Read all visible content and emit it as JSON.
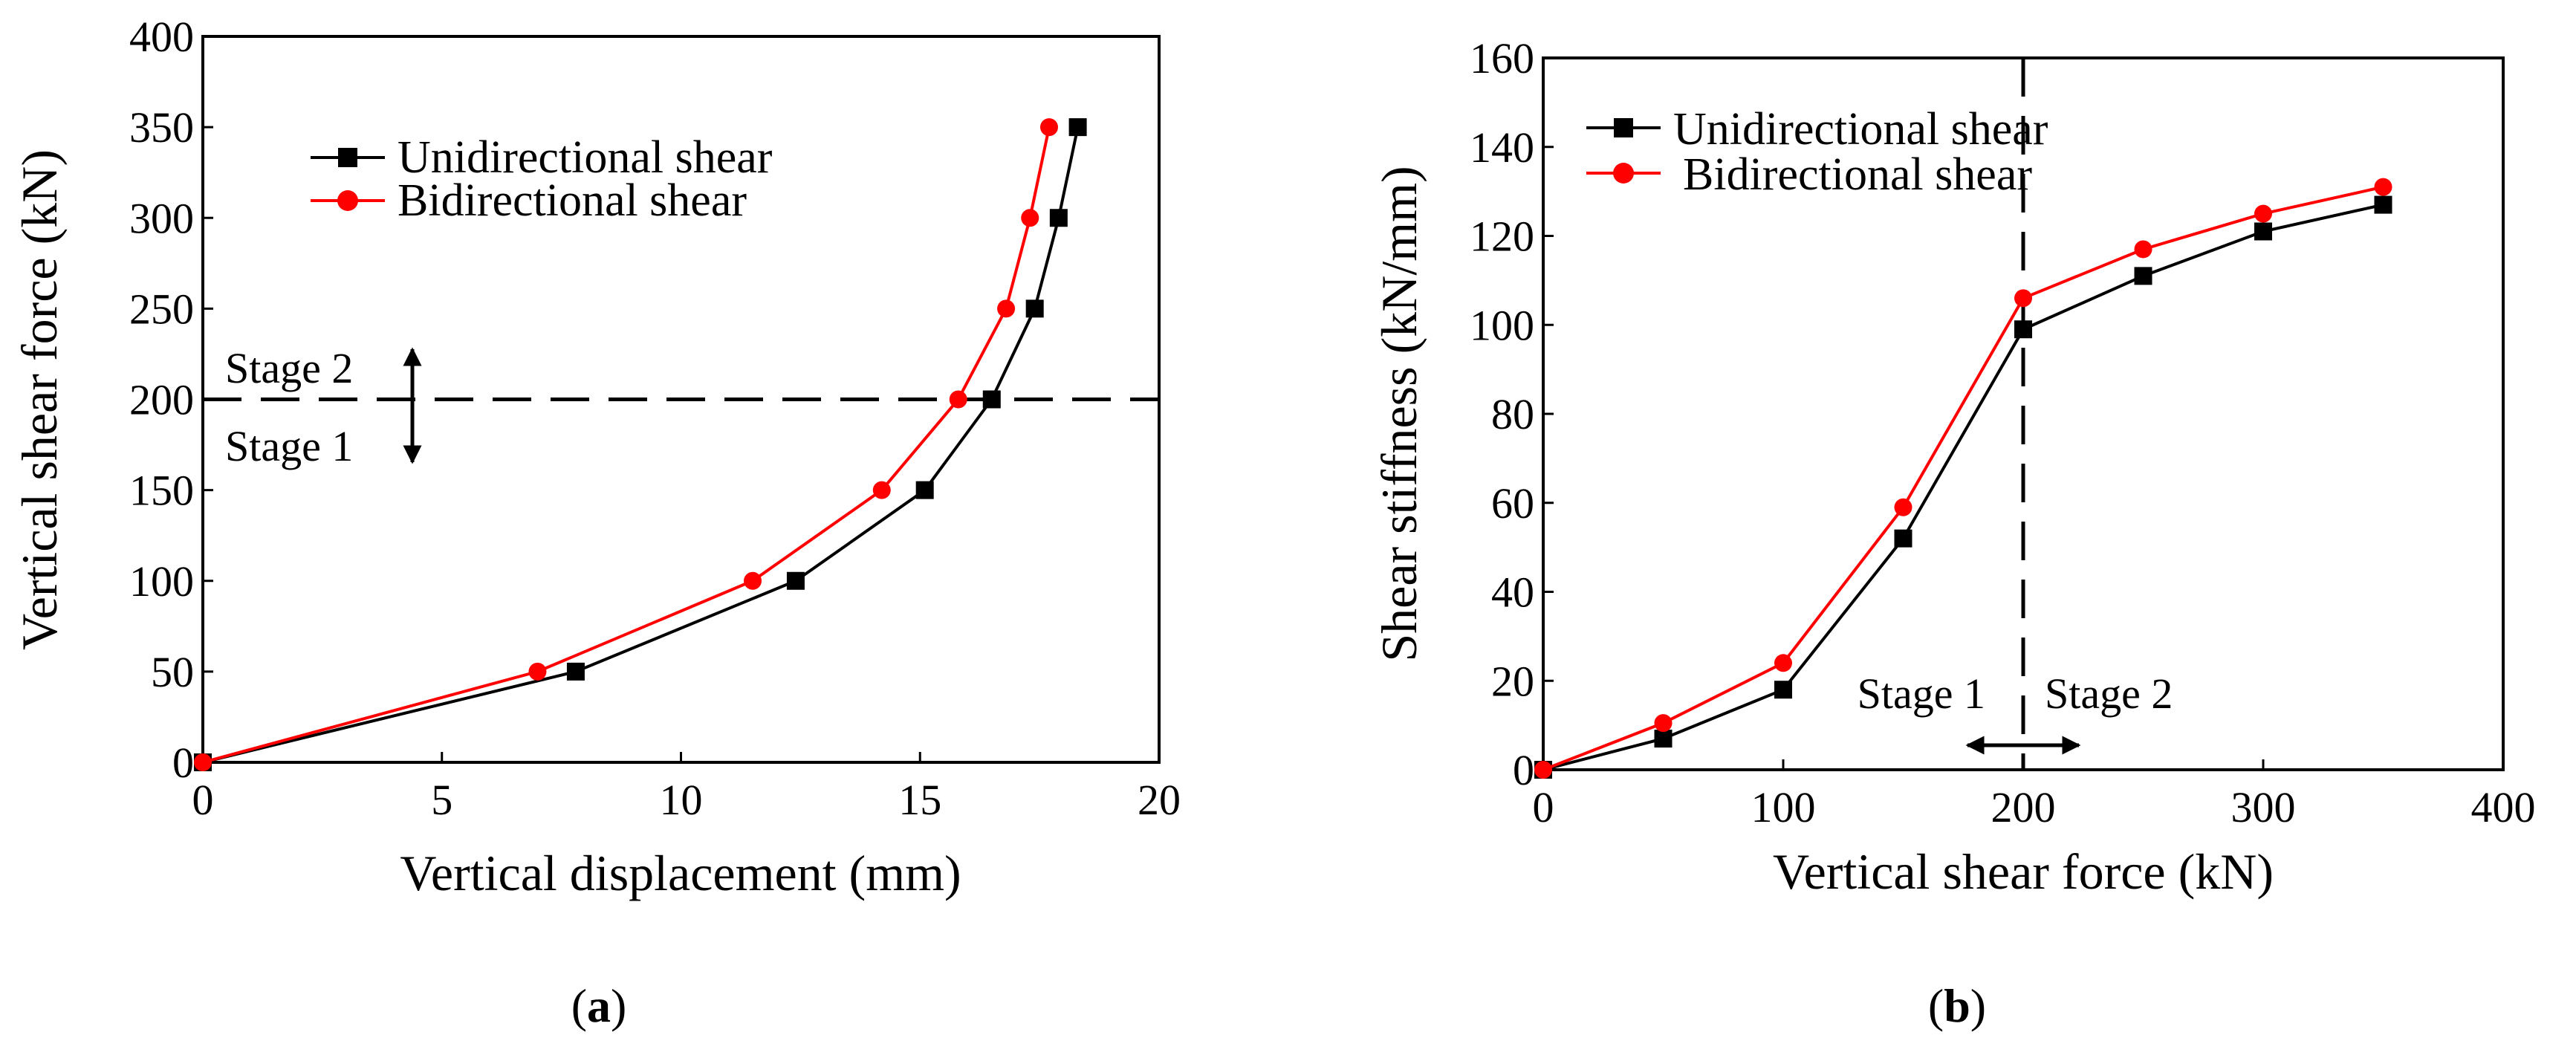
{
  "colors": {
    "unidirectional": "#000000",
    "bidirectional": "#ff0000"
  },
  "chart_data": [
    {
      "id": "a",
      "type": "line",
      "caption": {
        "open": "(",
        "letter": "a",
        "close": ")"
      },
      "xlabel": "Vertical displacement (mm)",
      "ylabel": "Vertical shear force (kN)",
      "xlim": [
        0,
        20
      ],
      "ylim": [
        0,
        400
      ],
      "xticks": [
        0,
        5,
        10,
        15,
        20
      ],
      "yticks": [
        0,
        50,
        100,
        150,
        200,
        250,
        300,
        350,
        400
      ],
      "grid": false,
      "legend_position": "top-left",
      "series": [
        {
          "name": "Unidirectional shear",
          "marker": "square",
          "color_key": "unidirectional",
          "x": [
            0,
            7.8,
            12.4,
            15.1,
            16.5,
            17.4,
            17.9,
            18.3
          ],
          "y": [
            0,
            50,
            100,
            150,
            200,
            250,
            300,
            350
          ]
        },
        {
          "name": "Bidirectional shear",
          "marker": "circle",
          "color_key": "bidirectional",
          "x": [
            0,
            7.0,
            11.5,
            14.2,
            15.8,
            16.8,
            17.3,
            17.7
          ],
          "y": [
            0,
            50,
            100,
            150,
            200,
            250,
            300,
            350
          ]
        }
      ],
      "reference_line": {
        "axis": "y",
        "value": 200,
        "style": "dashed"
      },
      "annotations": {
        "above": "Stage 2",
        "below": "Stage 1"
      }
    },
    {
      "id": "b",
      "type": "line",
      "caption": {
        "open": "(",
        "letter": "b",
        "close": ")"
      },
      "xlabel": "Vertical shear force (kN)",
      "ylabel": "Shear stiffness (kN/mm)",
      "xlim": [
        0,
        400
      ],
      "ylim": [
        0,
        160
      ],
      "xticks": [
        0,
        100,
        200,
        300,
        400
      ],
      "yticks": [
        0,
        20,
        40,
        60,
        80,
        100,
        120,
        140,
        160
      ],
      "grid": false,
      "legend_position": "top-left",
      "series": [
        {
          "name": "Unidirectional shear",
          "marker": "square",
          "color_key": "unidirectional",
          "x": [
            0,
            50,
            100,
            150,
            200,
            250,
            300,
            350
          ],
          "y": [
            0,
            7,
            18,
            52,
            99,
            111,
            121,
            127
          ]
        },
        {
          "name": "Bidirectional shear",
          "marker": "circle",
          "color_key": "bidirectional",
          "x": [
            0,
            50,
            100,
            150,
            200,
            250,
            300,
            350
          ],
          "y": [
            0,
            10.5,
            24,
            59,
            106,
            117,
            125,
            131
          ]
        }
      ],
      "reference_line": {
        "axis": "x",
        "value": 200,
        "style": "dashed"
      },
      "annotations": {
        "left": "Stage 1",
        "right": "Stage 2"
      }
    }
  ]
}
